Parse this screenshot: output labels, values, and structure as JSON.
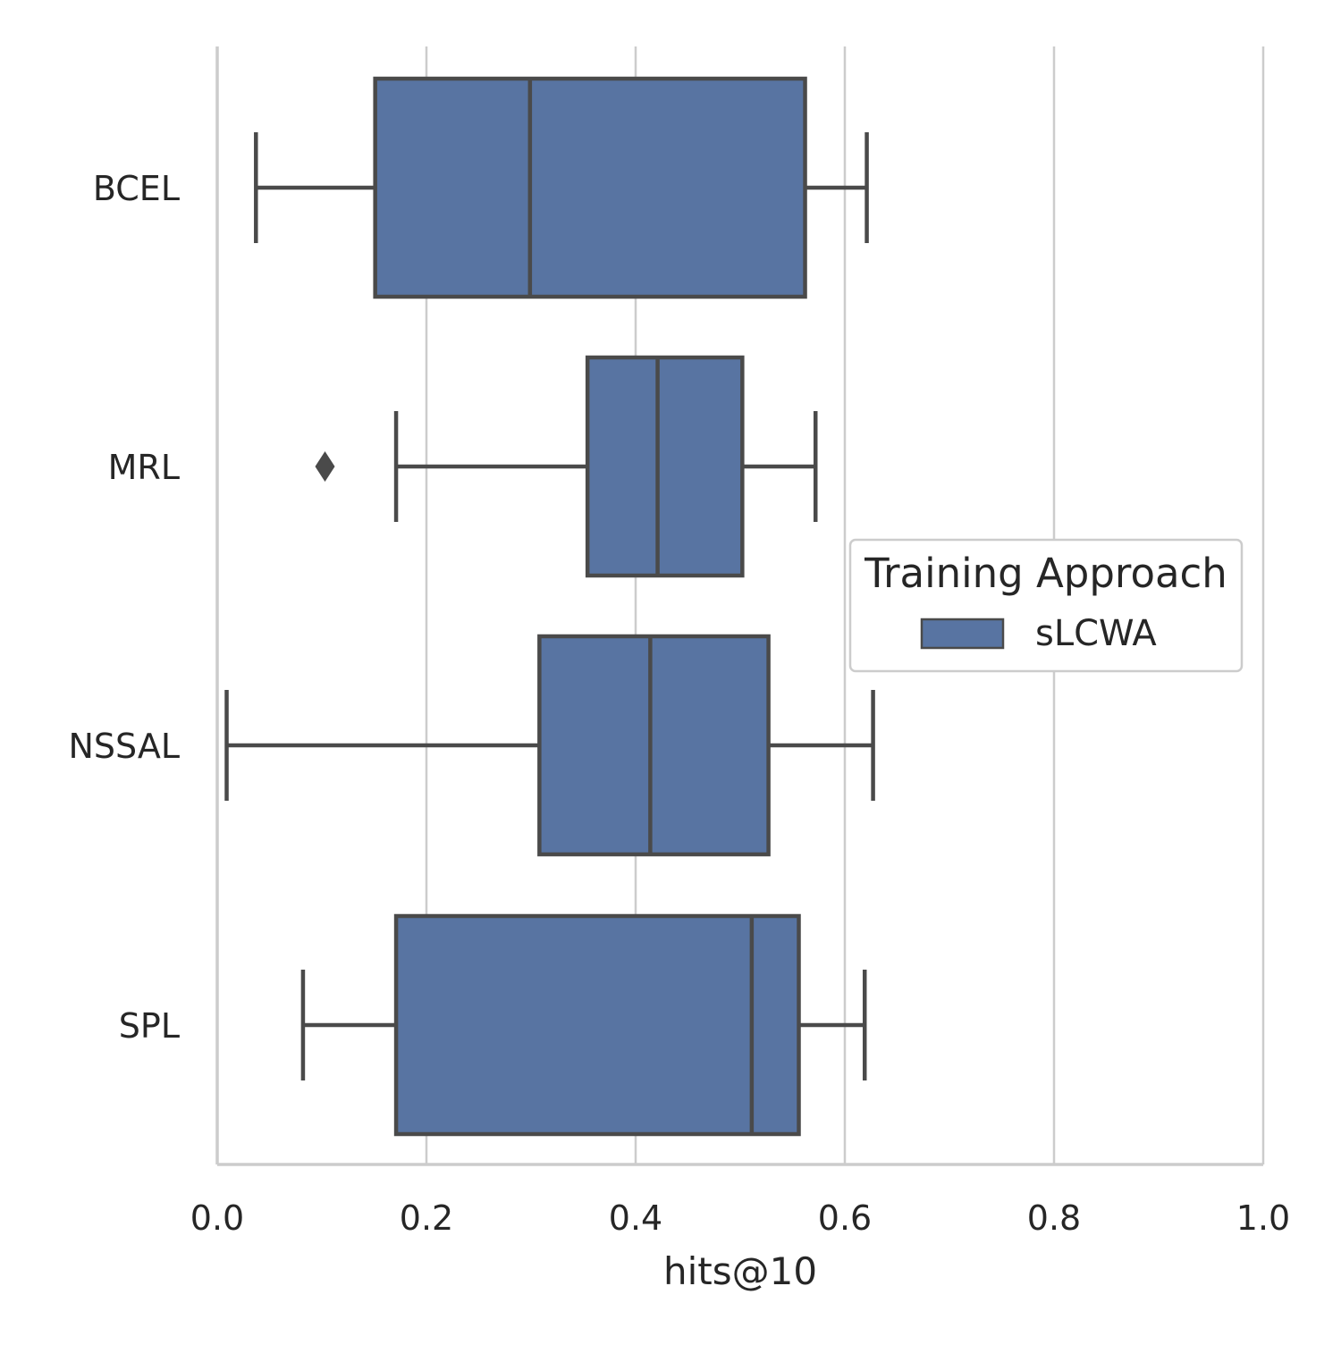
{
  "chart_data": {
    "type": "boxplot",
    "orientation": "horizontal",
    "xlabel": "hits@10",
    "ylabel": "",
    "xlim": [
      0.0,
      1.0
    ],
    "x_ticks": [
      "0.0",
      "0.2",
      "0.4",
      "0.6",
      "0.8",
      "1.0"
    ],
    "grid": "vertical",
    "categories": [
      "BCEL",
      "MRL",
      "NSSAL",
      "SPL"
    ],
    "series": [
      {
        "name": "sLCWA",
        "color": "#5874a2",
        "boxes": [
          {
            "category": "BCEL",
            "whisker_low": 0.037,
            "q1": 0.151,
            "median": 0.299,
            "q3": 0.562,
            "whisker_high": 0.621,
            "outliers": []
          },
          {
            "category": "MRL",
            "whisker_low": 0.171,
            "q1": 0.354,
            "median": 0.421,
            "q3": 0.502,
            "whisker_high": 0.572,
            "outliers": [
              0.103
            ]
          },
          {
            "category": "NSSAL",
            "whisker_low": 0.009,
            "q1": 0.308,
            "median": 0.414,
            "q3": 0.527,
            "whisker_high": 0.627,
            "outliers": []
          },
          {
            "category": "SPL",
            "whisker_low": 0.082,
            "q1": 0.171,
            "median": 0.511,
            "q3": 0.556,
            "whisker_high": 0.619,
            "outliers": []
          }
        ]
      }
    ],
    "legend": {
      "title": "Training Approach",
      "entries": [
        "sLCWA"
      ],
      "placement": "right"
    },
    "colors": {
      "box_fill": "#5874a2",
      "line": "#4a4a4a",
      "grid": "#cccccc",
      "spine": "#cccccc",
      "text": "#262626"
    }
  }
}
